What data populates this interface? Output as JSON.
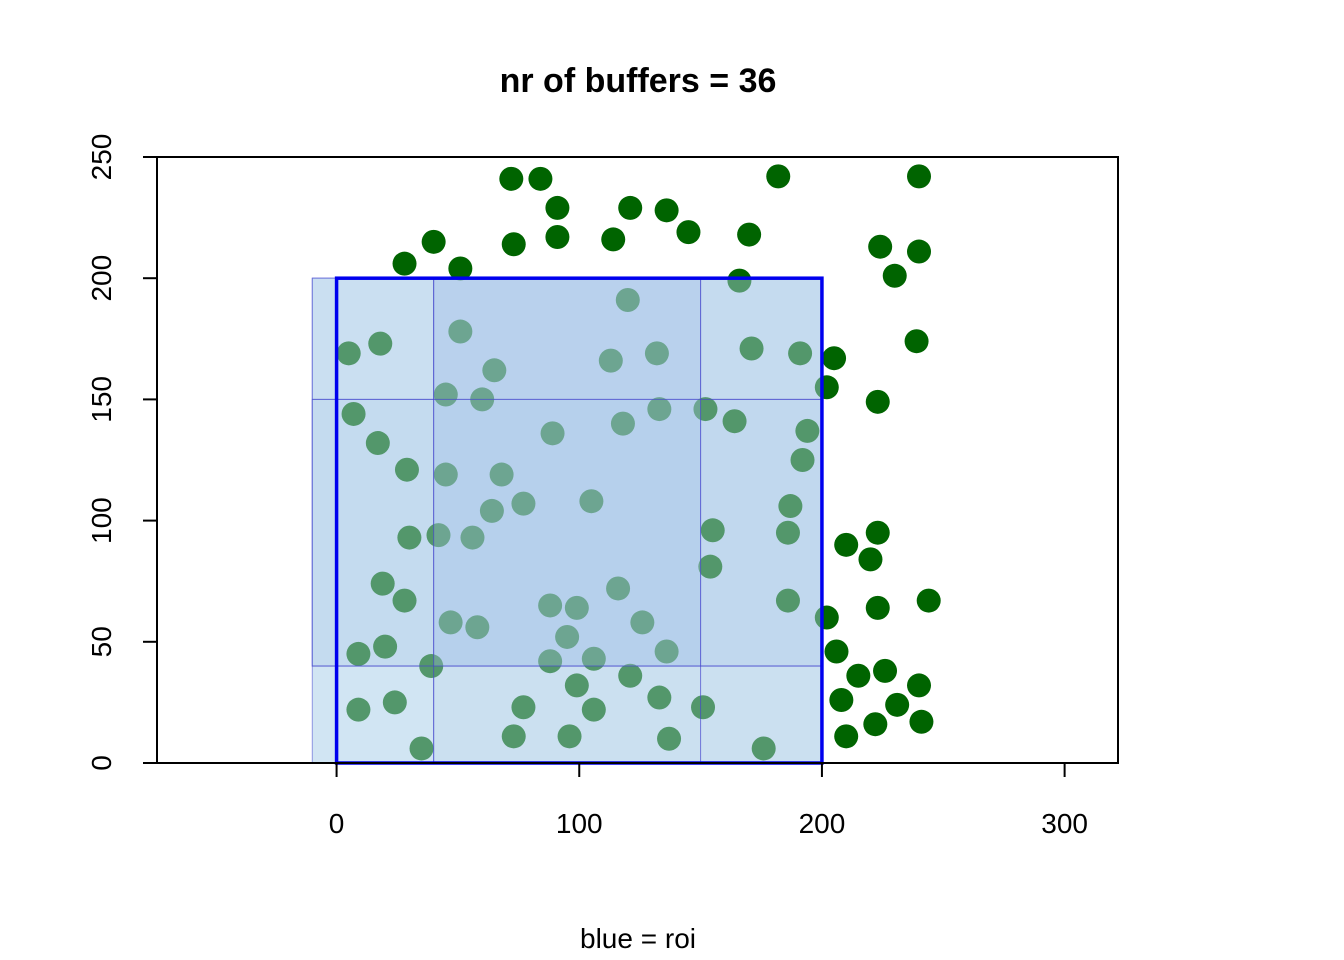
{
  "chart_data": {
    "type": "scatter",
    "title": "nr of buffers = 36",
    "xlabel": "blue = roi",
    "ylabel": "",
    "xlim": [
      -74,
      322
    ],
    "ylim": [
      0,
      250
    ],
    "x_ticks": [
      0,
      100,
      200,
      300
    ],
    "y_ticks": [
      0,
      50,
      100,
      150,
      200,
      250
    ],
    "grid": false,
    "colors": {
      "points": "#006400",
      "roi_outline": "#0000ee",
      "buffer_fill": "#add8e6",
      "inner_fill": "#9fb8e0"
    },
    "roi": {
      "x": [
        0,
        200
      ],
      "y": [
        0,
        200
      ]
    },
    "shaded_regions": [
      {
        "x": [
          -10,
          200
        ],
        "y": [
          0,
          200
        ],
        "fill": "#add8e6",
        "opacity": 0.3
      },
      {
        "x": [
          -10,
          200
        ],
        "y": [
          40,
          200
        ],
        "fill": "#c0d0ee",
        "opacity": 0.35
      },
      {
        "x": [
          40,
          200
        ],
        "y": [
          0,
          200
        ],
        "fill": "#b8cce8",
        "opacity": 0.25
      },
      {
        "x": [
          40,
          150
        ],
        "y": [
          40,
          200
        ],
        "fill": "#b0c8e8",
        "opacity": 0.3
      },
      {
        "x": [
          -10,
          200
        ],
        "y": [
          40,
          150
        ],
        "fill": "#b0cce8",
        "opacity": 0.25
      }
    ],
    "points": [
      [
        72,
        241
      ],
      [
        84,
        241
      ],
      [
        91,
        229
      ],
      [
        91,
        217
      ],
      [
        73,
        214
      ],
      [
        121,
        229
      ],
      [
        136,
        228
      ],
      [
        145,
        219
      ],
      [
        114,
        216
      ],
      [
        170,
        218
      ],
      [
        182,
        242
      ],
      [
        240,
        242
      ],
      [
        28,
        206
      ],
      [
        40,
        215
      ],
      [
        51,
        204
      ],
      [
        166,
        199
      ],
      [
        224,
        213
      ],
      [
        240,
        211
      ],
      [
        230,
        201
      ],
      [
        120,
        191
      ],
      [
        5,
        169
      ],
      [
        18,
        173
      ],
      [
        51,
        178
      ],
      [
        65,
        162
      ],
      [
        113,
        166
      ],
      [
        132,
        169
      ],
      [
        171,
        171
      ],
      [
        191,
        169
      ],
      [
        205,
        167
      ],
      [
        239,
        174
      ],
      [
        45,
        152
      ],
      [
        60,
        150
      ],
      [
        133,
        146
      ],
      [
        152,
        146
      ],
      [
        202,
        155
      ],
      [
        223,
        149
      ],
      [
        7,
        144
      ],
      [
        17,
        132
      ],
      [
        29,
        121
      ],
      [
        89,
        136
      ],
      [
        118,
        140
      ],
      [
        164,
        141
      ],
      [
        192,
        125
      ],
      [
        194,
        137
      ],
      [
        45,
        119
      ],
      [
        68,
        119
      ],
      [
        77,
        107
      ],
      [
        64,
        104
      ],
      [
        105,
        108
      ],
      [
        187,
        106
      ],
      [
        30,
        93
      ],
      [
        42,
        94
      ],
      [
        56,
        93
      ],
      [
        155,
        96
      ],
      [
        186,
        95
      ],
      [
        210,
        90
      ],
      [
        220,
        84
      ],
      [
        223,
        95
      ],
      [
        19,
        74
      ],
      [
        28,
        67
      ],
      [
        116,
        72
      ],
      [
        154,
        81
      ],
      [
        186,
        67
      ],
      [
        202,
        60
      ],
      [
        223,
        64
      ],
      [
        244,
        67
      ],
      [
        47,
        58
      ],
      [
        58,
        56
      ],
      [
        88,
        65
      ],
      [
        99,
        64
      ],
      [
        95,
        52
      ],
      [
        126,
        58
      ],
      [
        20,
        48
      ],
      [
        9,
        45
      ],
      [
        206,
        46
      ],
      [
        39,
        40
      ],
      [
        88,
        42
      ],
      [
        106,
        43
      ],
      [
        136,
        46
      ],
      [
        121,
        36
      ],
      [
        99,
        32
      ],
      [
        215,
        36
      ],
      [
        226,
        38
      ],
      [
        240,
        32
      ],
      [
        9,
        22
      ],
      [
        24,
        25
      ],
      [
        77,
        23
      ],
      [
        106,
        22
      ],
      [
        133,
        27
      ],
      [
        151,
        23
      ],
      [
        208,
        26
      ],
      [
        231,
        24
      ],
      [
        222,
        16
      ],
      [
        241,
        17
      ],
      [
        35,
        6
      ],
      [
        73,
        11
      ],
      [
        96,
        11
      ],
      [
        137,
        10
      ],
      [
        176,
        6
      ],
      [
        210,
        11
      ]
    ]
  }
}
